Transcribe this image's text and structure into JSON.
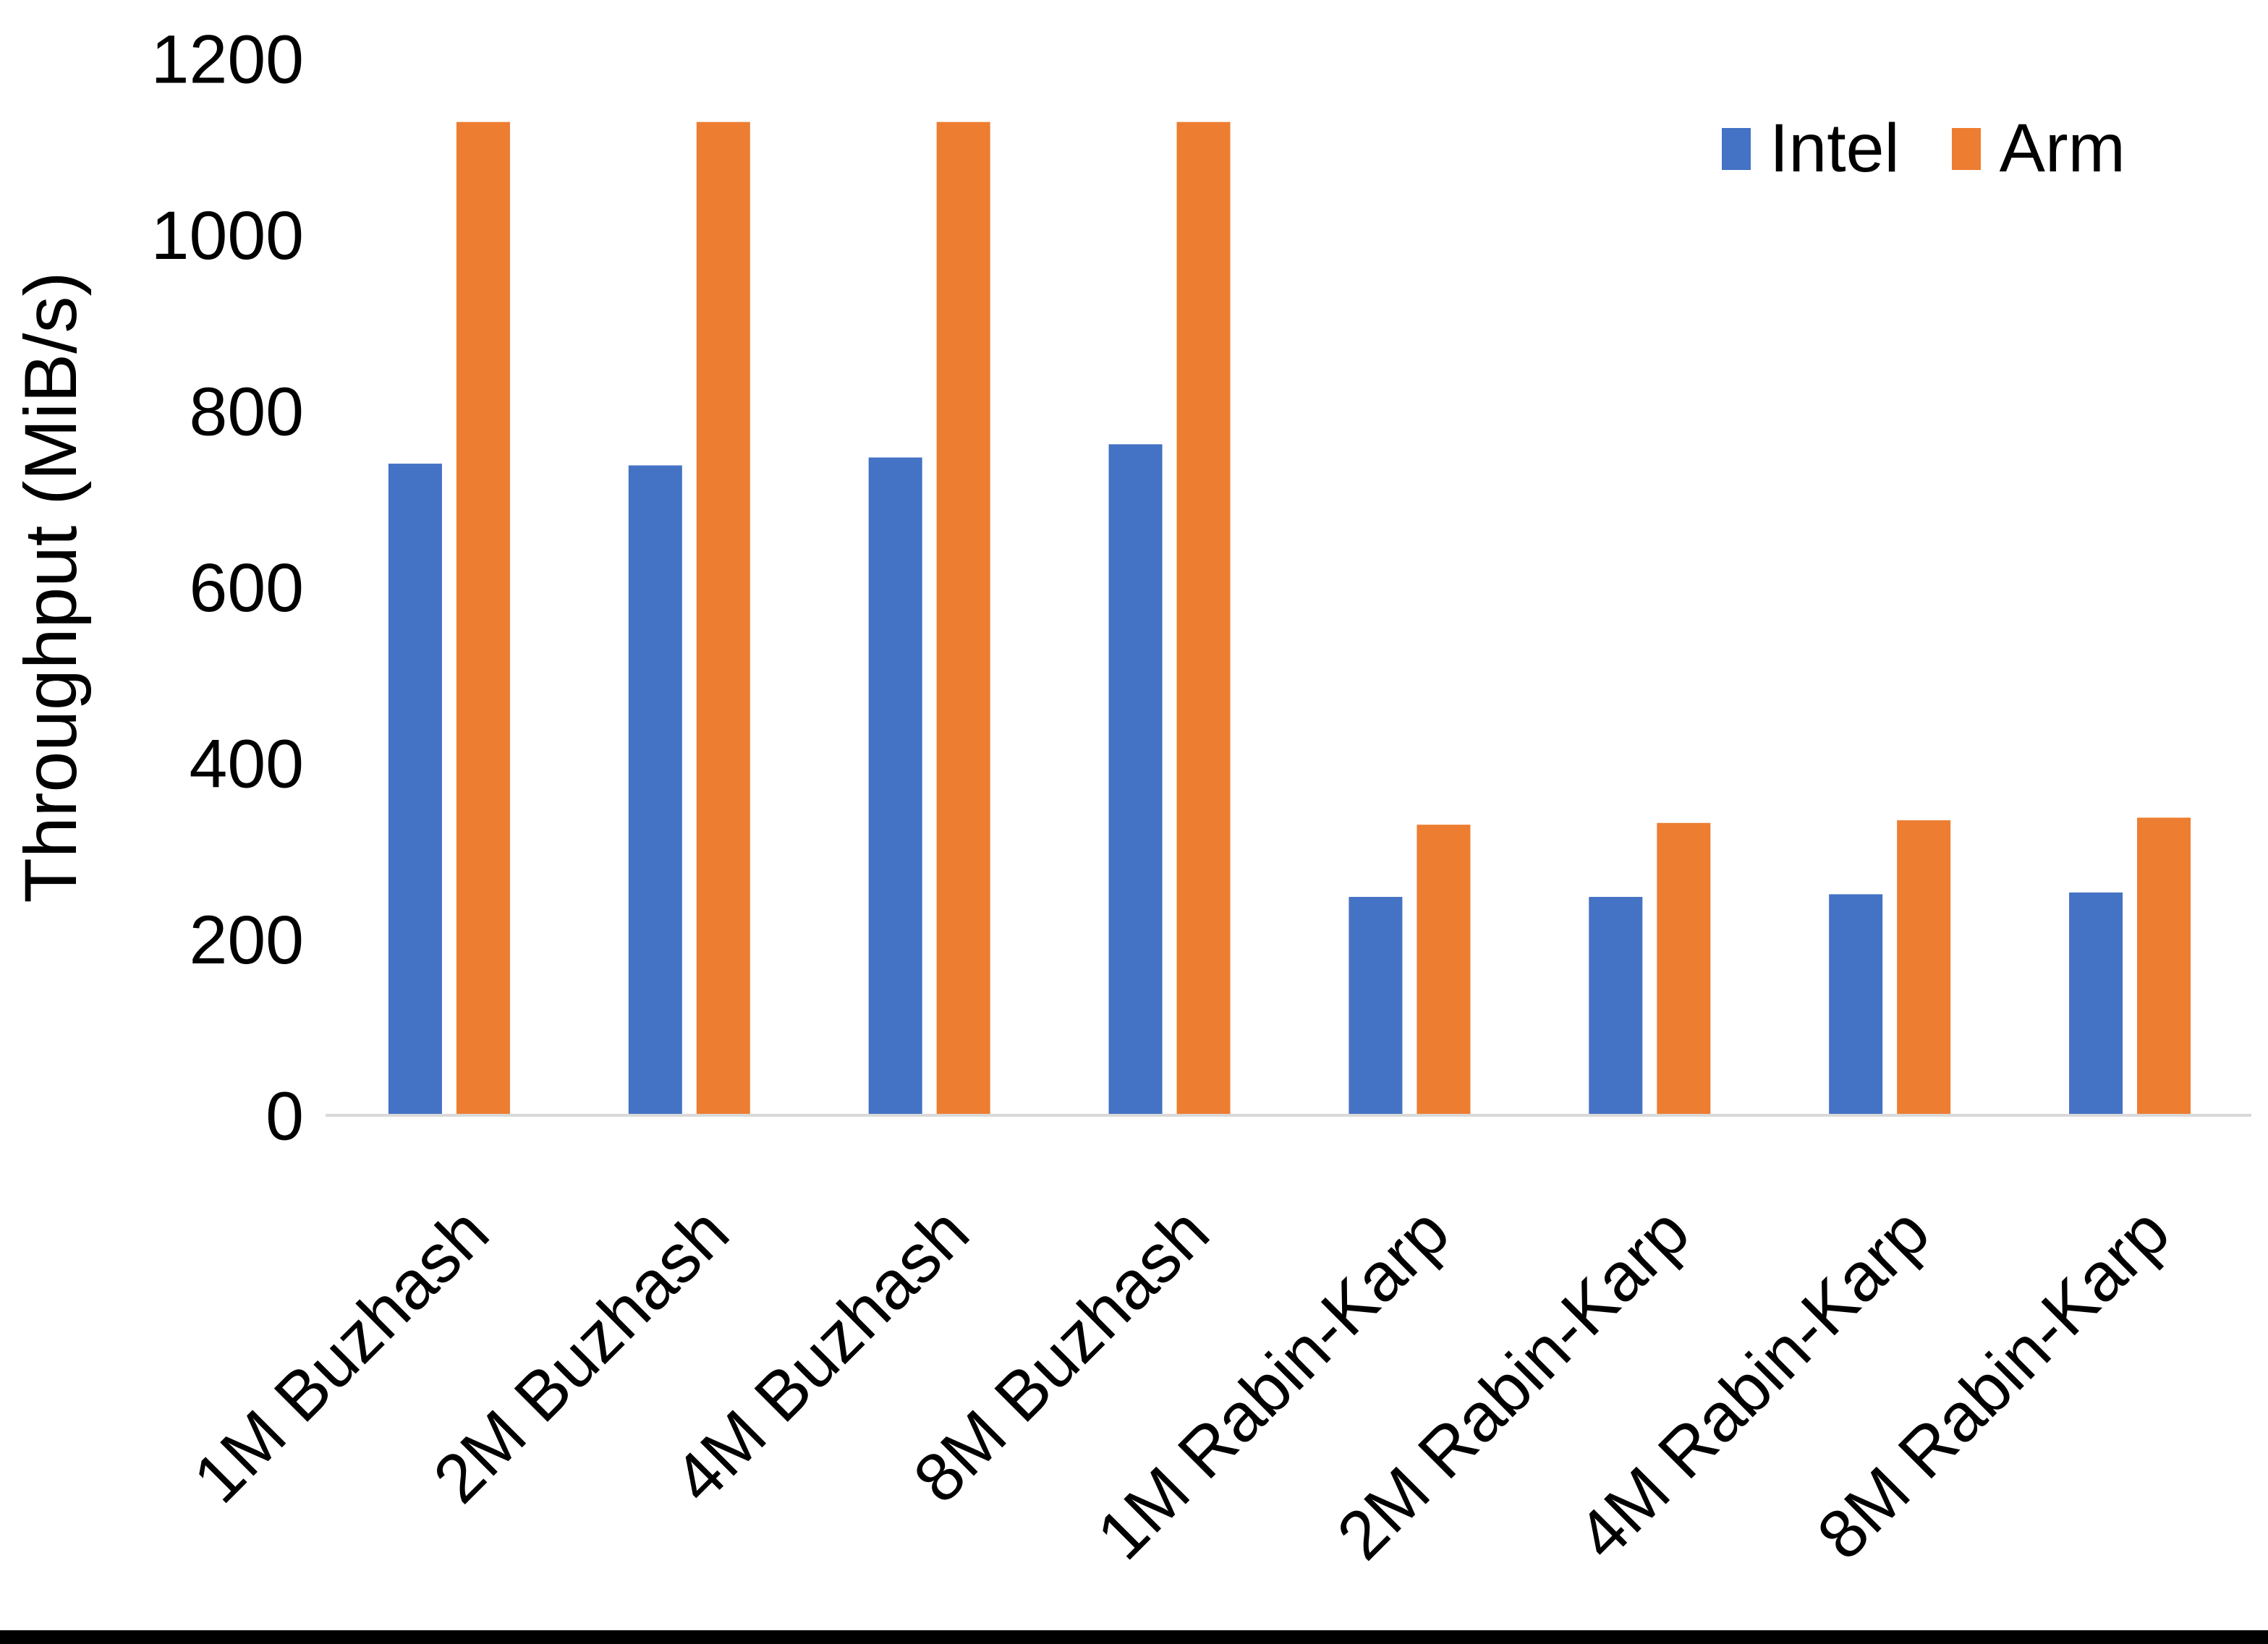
{
  "chart_data": {
    "type": "bar",
    "title": "",
    "xlabel": "",
    "ylabel": "Throughput (MiB/s)",
    "ylim": [
      0,
      1200
    ],
    "yticks": [
      0,
      200,
      400,
      600,
      800,
      1000,
      1200
    ],
    "grid": false,
    "legend_position": "top-right",
    "categories": [
      "1M Buzhash",
      "2M Buzhash",
      "4M Buzhash",
      "8M Buzhash",
      "1M Rabin-Karp",
      "2M Rabin-Karp",
      "4M Rabin-Karp",
      "8M Rabin-Karp"
    ],
    "series": [
      {
        "name": "Intel",
        "color": "#4472C4",
        "values": [
          740,
          738,
          747,
          762,
          248,
          248,
          251,
          253
        ]
      },
      {
        "name": "Arm",
        "color": "#ED7D31",
        "values": [
          1128,
          1128,
          1128,
          1128,
          330,
          332,
          335,
          338
        ]
      }
    ]
  },
  "frame": {
    "background": "#FFFFFF",
    "axis_line_color": "#D9D9D9",
    "text_color": "#000000",
    "bottom_border_color": "#000000"
  }
}
